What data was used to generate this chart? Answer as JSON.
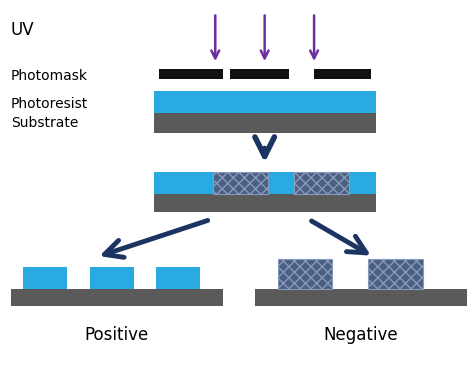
{
  "bg_color": "#ffffff",
  "uv_color": "#6B2FA0",
  "photomask_color": "#111111",
  "photoresist_color": "#29ABE2",
  "substrate_color": "#5A5A5A",
  "exposed_color": "#4A6080",
  "arrow_color": "#1C3461",
  "label_color": "#000000",
  "fig_width": 4.74,
  "fig_height": 3.82,
  "labels": {
    "uv": "UV",
    "photomask": "Photomask",
    "photoresist": "Photoresist",
    "substrate": "Substrate",
    "positive": "Positive",
    "negative": "Negative"
  }
}
